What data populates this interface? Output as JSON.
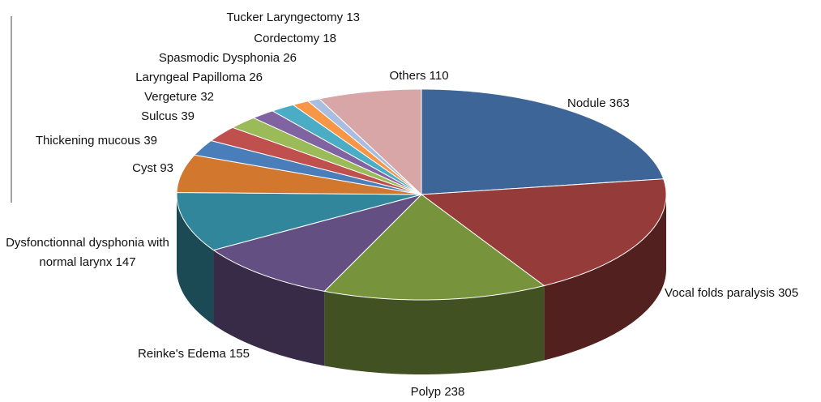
{
  "chart_data": {
    "type": "pie",
    "categories": [
      "Nodule",
      "Vocal folds paralysis",
      "Polyp",
      "Reinke's Edema",
      "Dysfonctionnal dysphonia with normal larynx",
      "Cyst",
      "Thickening mucous",
      "Sulcus",
      "Vergeture",
      "Laryngeal Papilloma",
      "Spasmodic Dysphonia",
      "Cordectomy",
      "Tucker Laryngectomy",
      "Others"
    ],
    "values": [
      363,
      305,
      238,
      155,
      147,
      93,
      39,
      39,
      32,
      26,
      26,
      18,
      13,
      110
    ],
    "colors": [
      "#3d6597",
      "#953b39",
      "#77933c",
      "#644f82",
      "#31869b",
      "#d2772e",
      "#4a7ebb",
      "#c0504d",
      "#9bbb59",
      "#8064a2",
      "#4bacc6",
      "#f79646",
      "#a8bde0",
      "#d9a6a7"
    ]
  }
}
